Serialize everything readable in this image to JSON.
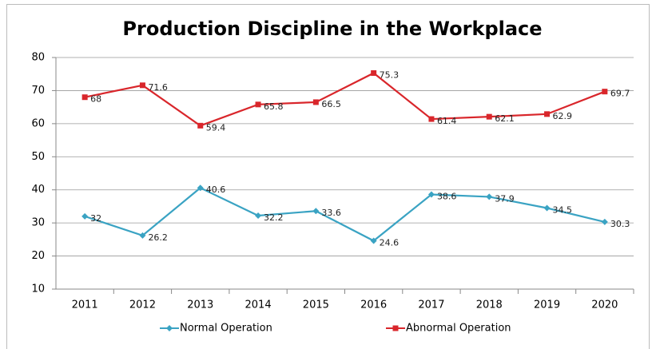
{
  "chart_data": {
    "type": "line",
    "title": "Production Discipline in the Workplace",
    "categories": [
      "2011",
      "2012",
      "2013",
      "2014",
      "2015",
      "2016",
      "2017",
      "2018",
      "2019",
      "2020"
    ],
    "series": [
      {
        "name": "Normal Operation",
        "color": "#3aa3c3",
        "marker": "diamond",
        "values": [
          32,
          26.2,
          40.6,
          32.2,
          33.6,
          24.6,
          38.6,
          37.9,
          34.5,
          30.3
        ]
      },
      {
        "name": "Abnormal Operation",
        "color": "#d9262b",
        "marker": "square",
        "values": [
          68,
          71.6,
          59.4,
          65.8,
          66.5,
          75.3,
          61.4,
          62.1,
          62.9,
          69.7
        ]
      }
    ],
    "ylim": [
      10,
      80
    ],
    "yticks": [
      10,
      20,
      30,
      40,
      50,
      60,
      70,
      80
    ],
    "grid": true,
    "legend": "bottom"
  }
}
